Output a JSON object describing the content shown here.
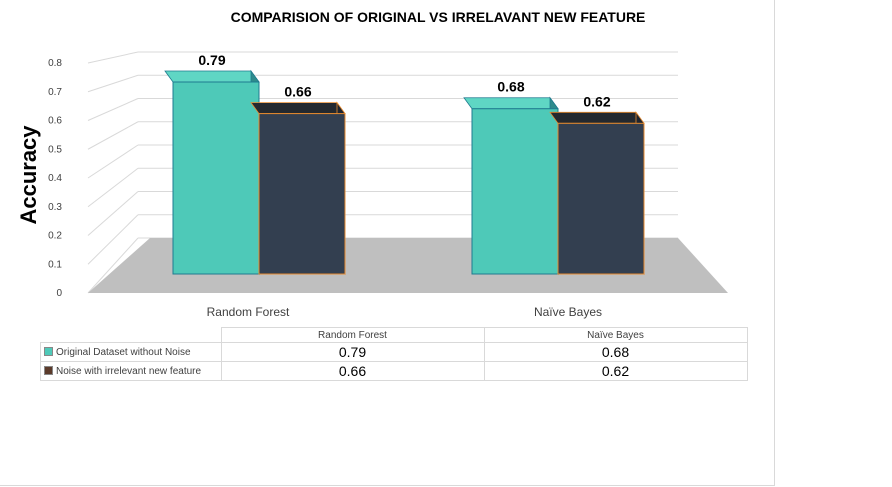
{
  "chart_data": {
    "type": "bar",
    "title": "COMPARISION OF ORIGINAL VS IRRELAVANT NEW FEATURE",
    "ylabel": "Accuracy",
    "xlabel": "",
    "categories": [
      "Random Forest",
      "Naïve Bayes"
    ],
    "series": [
      {
        "name": "Original Dataset without Noise",
        "values": [
          0.79,
          0.68
        ],
        "color": "#4ec9b8"
      },
      {
        "name": "Noise with irrelevant new feature",
        "values": [
          0.66,
          0.62
        ],
        "color": "#333f50"
      }
    ],
    "ylim": [
      0,
      0.8
    ],
    "yticks": [
      "0",
      "0.1",
      "0.2",
      "0.3",
      "0.4",
      "0.5",
      "0.6",
      "0.7",
      "0.8"
    ],
    "grid": true,
    "style": "3d-clustered-column",
    "data_labels": [
      "0.79",
      "0.66",
      "0.68",
      "0.62"
    ],
    "table_values": [
      [
        "0.79",
        "0.68"
      ],
      [
        "0.66",
        "0.62"
      ]
    ]
  }
}
